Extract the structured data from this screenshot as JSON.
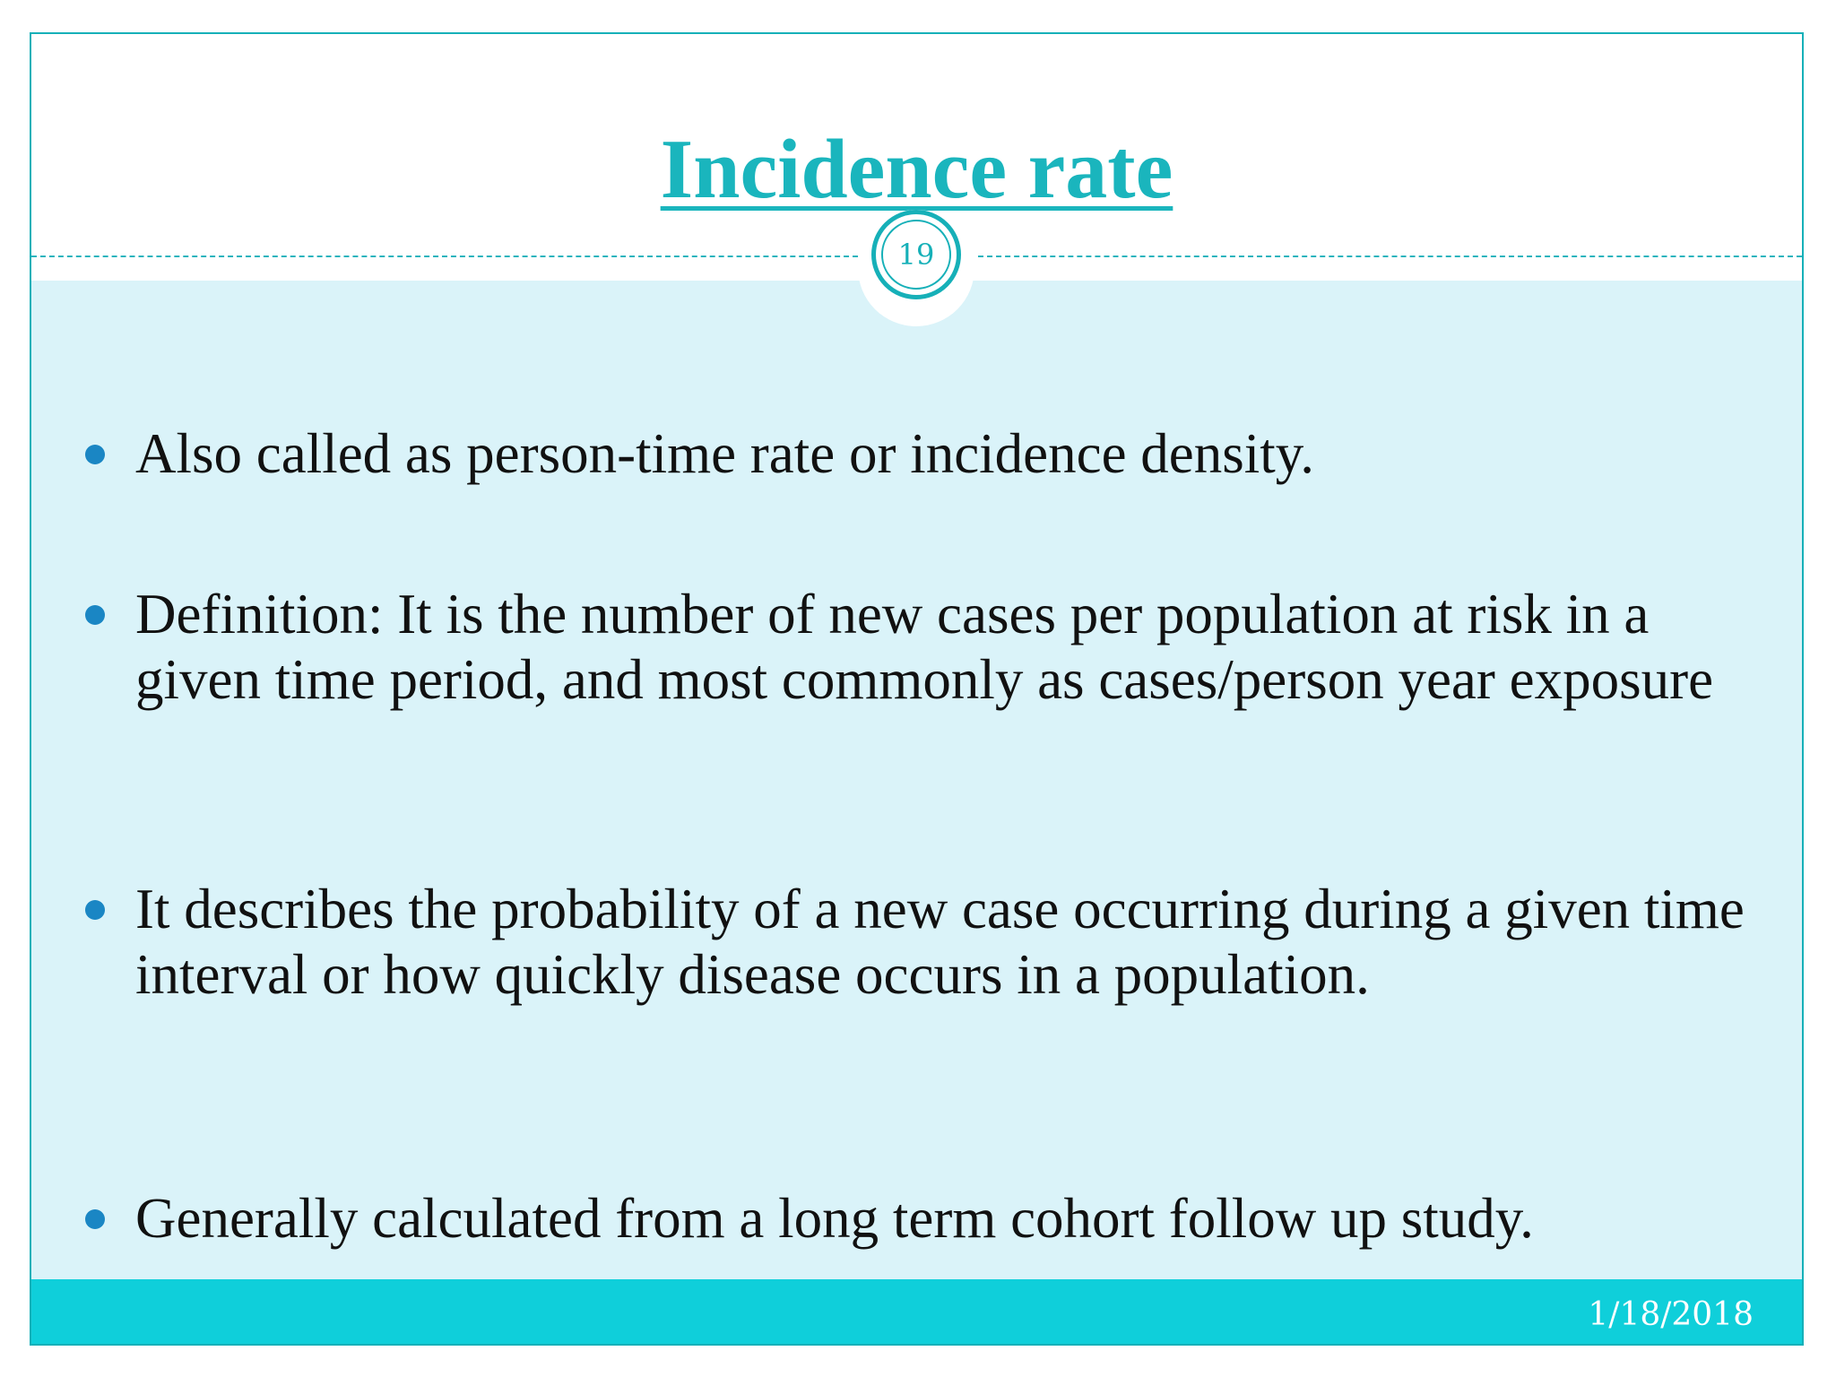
{
  "slide": {
    "title": "Incidence rate",
    "slide_number": "19",
    "date": "1/18/2018",
    "bullets": [
      "Also called as person-time rate or incidence density.",
      "Definition: It is the number of new cases per population at risk in a given time period, and most commonly as cases/person year exposure",
      "It describes the probability of a new case occurring during a given time interval or how quickly disease occurs in a population.",
      "Generally calculated from a long term cohort follow up study."
    ]
  },
  "colors": {
    "accent": "#16b0b8",
    "content_background": "#daf3f9",
    "footer_bar": "#0fcfda",
    "bullet": "#1a86c4",
    "text": "#111111"
  }
}
